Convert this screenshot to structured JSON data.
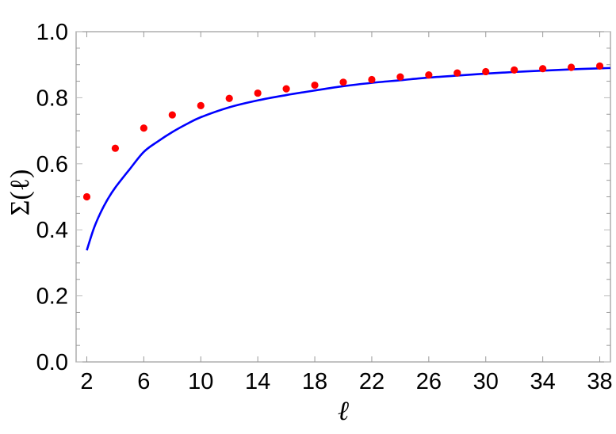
{
  "chart_data": {
    "type": "scatter",
    "title": "",
    "xlabel": "ℓ",
    "ylabel": "Σ(ℓ)",
    "xlim": [
      1.25,
      38.75
    ],
    "ylim": [
      0.0,
      1.0
    ],
    "x_ticks": [
      2,
      6,
      10,
      14,
      18,
      22,
      26,
      30,
      34,
      38
    ],
    "y_ticks": [
      0.0,
      0.2,
      0.4,
      0.6,
      0.8,
      1.0
    ],
    "y_tick_labels": [
      "0.0",
      "0.2",
      "0.4",
      "0.6",
      "0.8",
      "1.0"
    ],
    "y_minor_step": 0.05,
    "grid": false,
    "legend": null,
    "series": [
      {
        "name": "points",
        "kind": "scatter",
        "color": "#ff0000",
        "x": [
          2,
          4,
          6,
          8,
          10,
          12,
          14,
          16,
          18,
          20,
          22,
          24,
          26,
          28,
          30,
          32,
          34,
          36,
          38
        ],
        "values": [
          0.5,
          0.647,
          0.708,
          0.748,
          0.776,
          0.798,
          0.814,
          0.827,
          0.838,
          0.847,
          0.855,
          0.863,
          0.869,
          0.875,
          0.879,
          0.884,
          0.888,
          0.892,
          0.896
        ]
      },
      {
        "name": "curve",
        "kind": "line",
        "color": "#0000ff",
        "x": [
          2,
          2.5,
          3,
          3.5,
          4,
          5,
          6,
          7,
          8,
          9,
          10,
          12,
          14,
          16,
          18,
          20,
          22,
          24,
          26,
          28,
          30,
          32,
          34,
          36,
          38,
          38.75
        ],
        "values": [
          0.338,
          0.405,
          0.455,
          0.495,
          0.528,
          0.583,
          0.636,
          0.668,
          0.696,
          0.72,
          0.741,
          0.771,
          0.792,
          0.808,
          0.822,
          0.835,
          0.845,
          0.853,
          0.861,
          0.867,
          0.873,
          0.878,
          0.882,
          0.886,
          0.889,
          0.89
        ]
      }
    ]
  },
  "axes": {
    "x_label": "ℓ",
    "y_label": "Σ(ℓ)",
    "frame_color": "#999999",
    "tick_color": "#999999"
  }
}
